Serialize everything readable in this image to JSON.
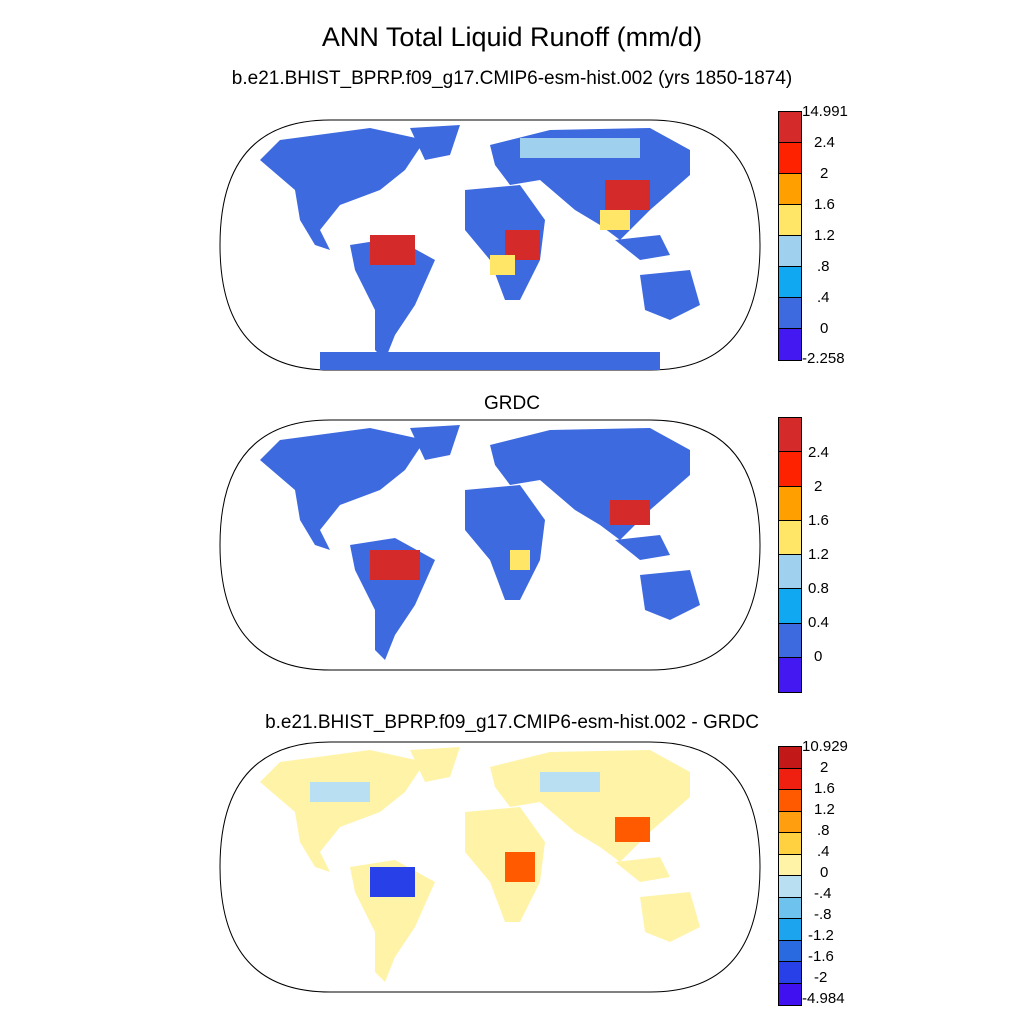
{
  "title": "ANN Total Liquid Runoff (mm/d)",
  "panels": [
    {
      "subtitle": "b.e21.BHIST_BPRP.f09_g17.CMIP6-esm-hist.002 (yrs 1850-1874)",
      "colorbar": {
        "labels": [
          "14.991",
          "2.4",
          "2",
          "1.6",
          "1.2",
          ".8",
          ".4",
          "0",
          "-2.258"
        ],
        "colors": [
          "#d42a2a",
          "#ff2200",
          "#ffa000",
          "#ffe666",
          "#9fd0ee",
          "#10a8f0",
          "#3e6ae0",
          "#4418f0"
        ]
      }
    },
    {
      "subtitle": "GRDC",
      "colorbar": {
        "labels": [
          "2.4",
          "2",
          "1.6",
          "1.2",
          "0.8",
          "0.4",
          "0"
        ],
        "colors": [
          "#d42a2a",
          "#ff2200",
          "#ffa000",
          "#ffe666",
          "#9fd0ee",
          "#10a8f0",
          "#3e6ae0",
          "#4418f0"
        ]
      }
    },
    {
      "subtitle": "b.e21.BHIST_BPRP.f09_g17.CMIP6-esm-hist.002 - GRDC",
      "colorbar": {
        "labels": [
          "10.929",
          "2",
          "1.6",
          "1.2",
          ".8",
          ".4",
          "0",
          "-.4",
          "-.8",
          "-1.2",
          "-1.6",
          "-2",
          "-4.984"
        ],
        "colors": [
          "#c21818",
          "#f02010",
          "#ff5a00",
          "#ff9f10",
          "#ffd040",
          "#fff3a8",
          "#b8e0f2",
          "#6ec2ee",
          "#1ca4ee",
          "#2a6ae0",
          "#2840e8",
          "#4010f0"
        ]
      }
    }
  ]
}
